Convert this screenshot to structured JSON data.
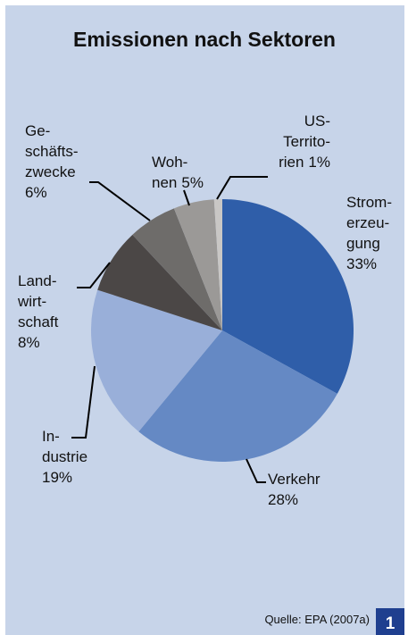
{
  "chart_data": {
    "type": "pie",
    "title": "Emissionen nach Sektoren",
    "categories": [
      [
        "Strom-",
        "erzeu-",
        "gung"
      ],
      [
        "Verkehr"
      ],
      [
        "In-",
        "dustrie"
      ],
      [
        "Land-",
        "wirt-",
        "schaft"
      ],
      [
        "Ge-",
        "schäfts-",
        "zwecke"
      ],
      [
        "Woh-",
        "nen"
      ],
      [
        "US-",
        "Territo-",
        "rien"
      ]
    ],
    "values": [
      33,
      28,
      19,
      8,
      6,
      5,
      1
    ],
    "value_labels": [
      "33%",
      "28%",
      "19%",
      "8%",
      "6%",
      "5%",
      "1%"
    ],
    "colors": [
      "#2f5ea9",
      "#6589c4",
      "#99afd9",
      "#4b4746",
      "#6e6c6a",
      "#9b9997",
      "#c9c7c5"
    ],
    "source": "Quelle: EPA (2007a)",
    "badge": "1"
  }
}
